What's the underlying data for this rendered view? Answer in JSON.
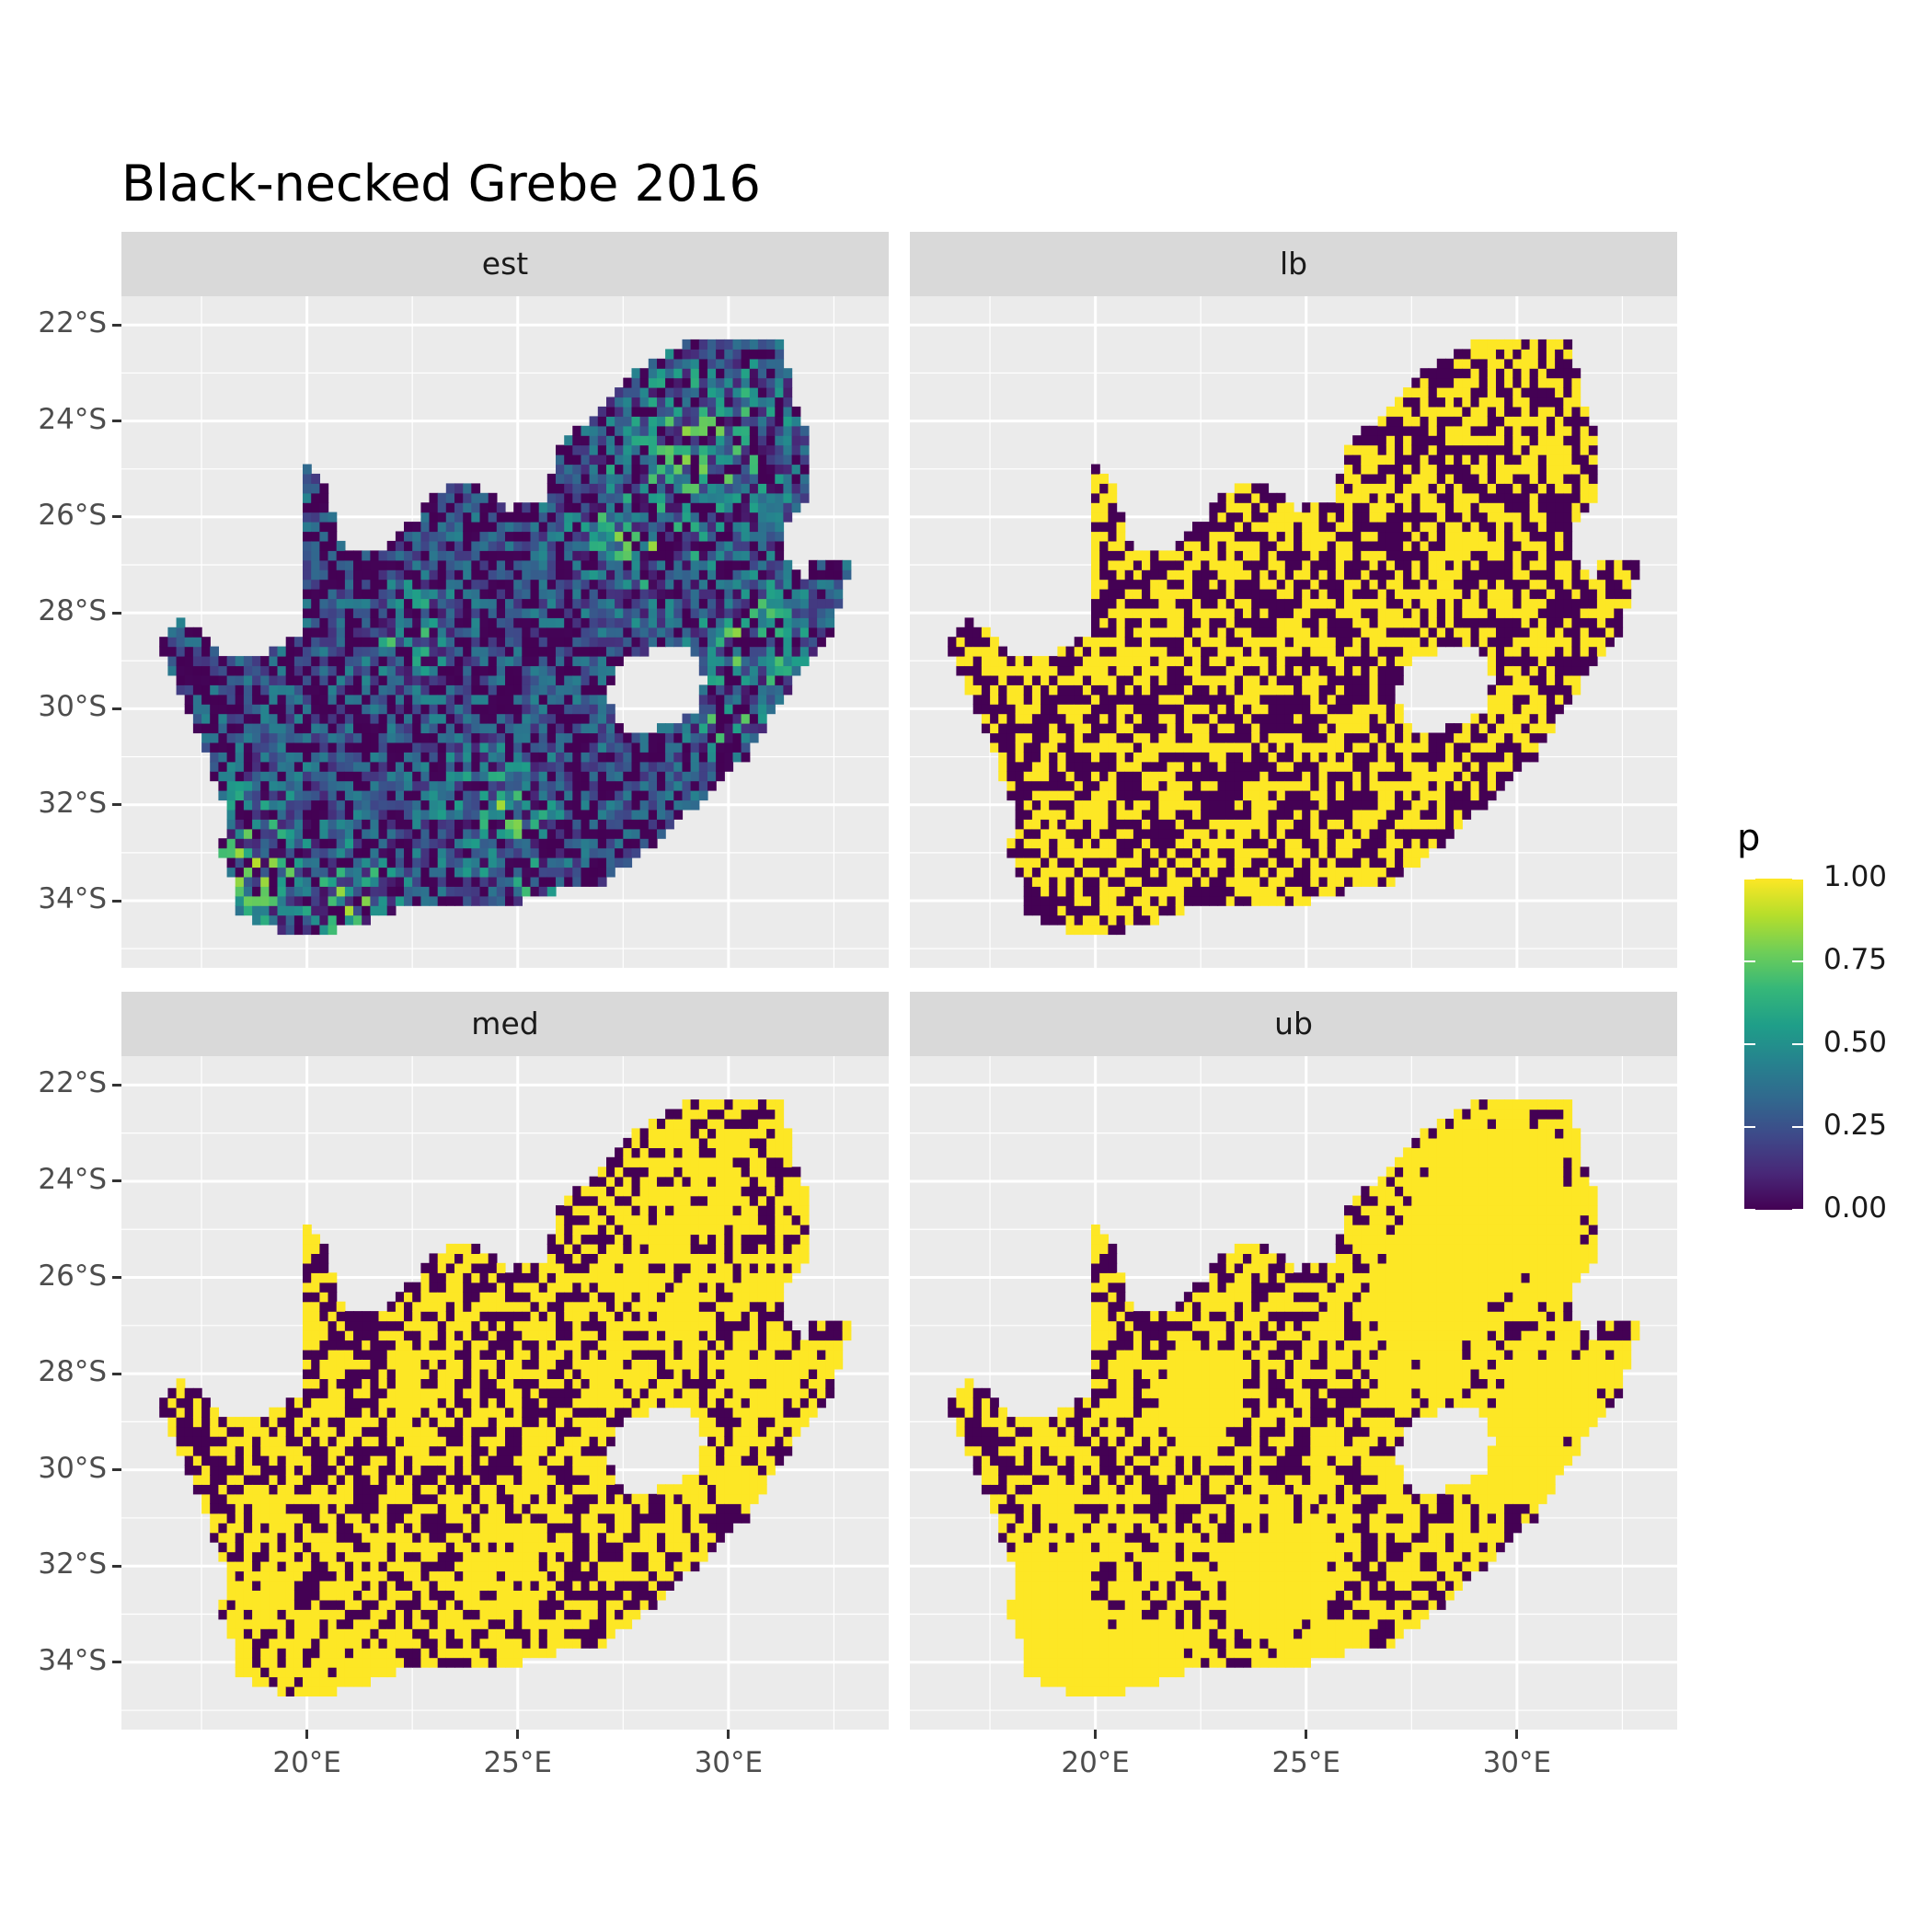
{
  "title": "Black-necked Grebe 2016",
  "facets": [
    {
      "label": "est",
      "pattern": "est"
    },
    {
      "label": "lb",
      "pattern": "lb"
    },
    {
      "label": "med",
      "pattern": "med"
    },
    {
      "label": "ub",
      "pattern": "ub"
    }
  ],
  "axes": {
    "x_ticks": [
      {
        "value": 20,
        "label": "20°E"
      },
      {
        "value": 25,
        "label": "25°E"
      },
      {
        "value": 30,
        "label": "30°E"
      }
    ],
    "y_ticks": [
      {
        "value": -22,
        "label": "22°S"
      },
      {
        "value": -24,
        "label": "24°S"
      },
      {
        "value": -26,
        "label": "26°S"
      },
      {
        "value": -28,
        "label": "28°S"
      },
      {
        "value": -30,
        "label": "30°S"
      },
      {
        "value": -32,
        "label": "32°S"
      },
      {
        "value": -34,
        "label": "34°S"
      }
    ],
    "xlim": [
      15.6,
      33.8
    ],
    "ylim": [
      -35.4,
      -21.4
    ]
  },
  "legend": {
    "title": "p",
    "colormap": "viridis",
    "ticks": [
      {
        "value": 1.0,
        "label": "1.00"
      },
      {
        "value": 0.75,
        "label": "0.75"
      },
      {
        "value": 0.5,
        "label": "0.50"
      },
      {
        "value": 0.25,
        "label": "0.25"
      },
      {
        "value": 0.0,
        "label": "0.00"
      }
    ],
    "colors": [
      "#440154",
      "#3b528b",
      "#21908d",
      "#5dc963",
      "#fde725"
    ]
  },
  "chart_data": {
    "type": "heatmap",
    "title": "Black-necked Grebe 2016",
    "variable": "p",
    "value_range": [
      0,
      1
    ],
    "facets": [
      "est",
      "lb",
      "med",
      "ub"
    ],
    "hotspots": [
      {
        "lon": 28.0,
        "lat": -26.2,
        "radius": 1.0
      },
      {
        "lon": 29.5,
        "lat": -24.5,
        "radius": 1.2
      },
      {
        "lon": 30.6,
        "lat": -28.6,
        "radius": 0.8
      },
      {
        "lon": 18.8,
        "lat": -33.2,
        "radius": 1.0
      },
      {
        "lon": 21.0,
        "lat": -34.2,
        "radius": 0.9
      },
      {
        "lon": 24.5,
        "lat": -32.2,
        "radius": 0.8
      },
      {
        "lon": 22.5,
        "lat": -28.5,
        "radius": 0.6
      },
      {
        "lon": 25.5,
        "lat": -34.0,
        "radius": 0.6
      },
      {
        "lon": 30.0,
        "lat": -30.0,
        "radius": 0.6
      }
    ]
  }
}
